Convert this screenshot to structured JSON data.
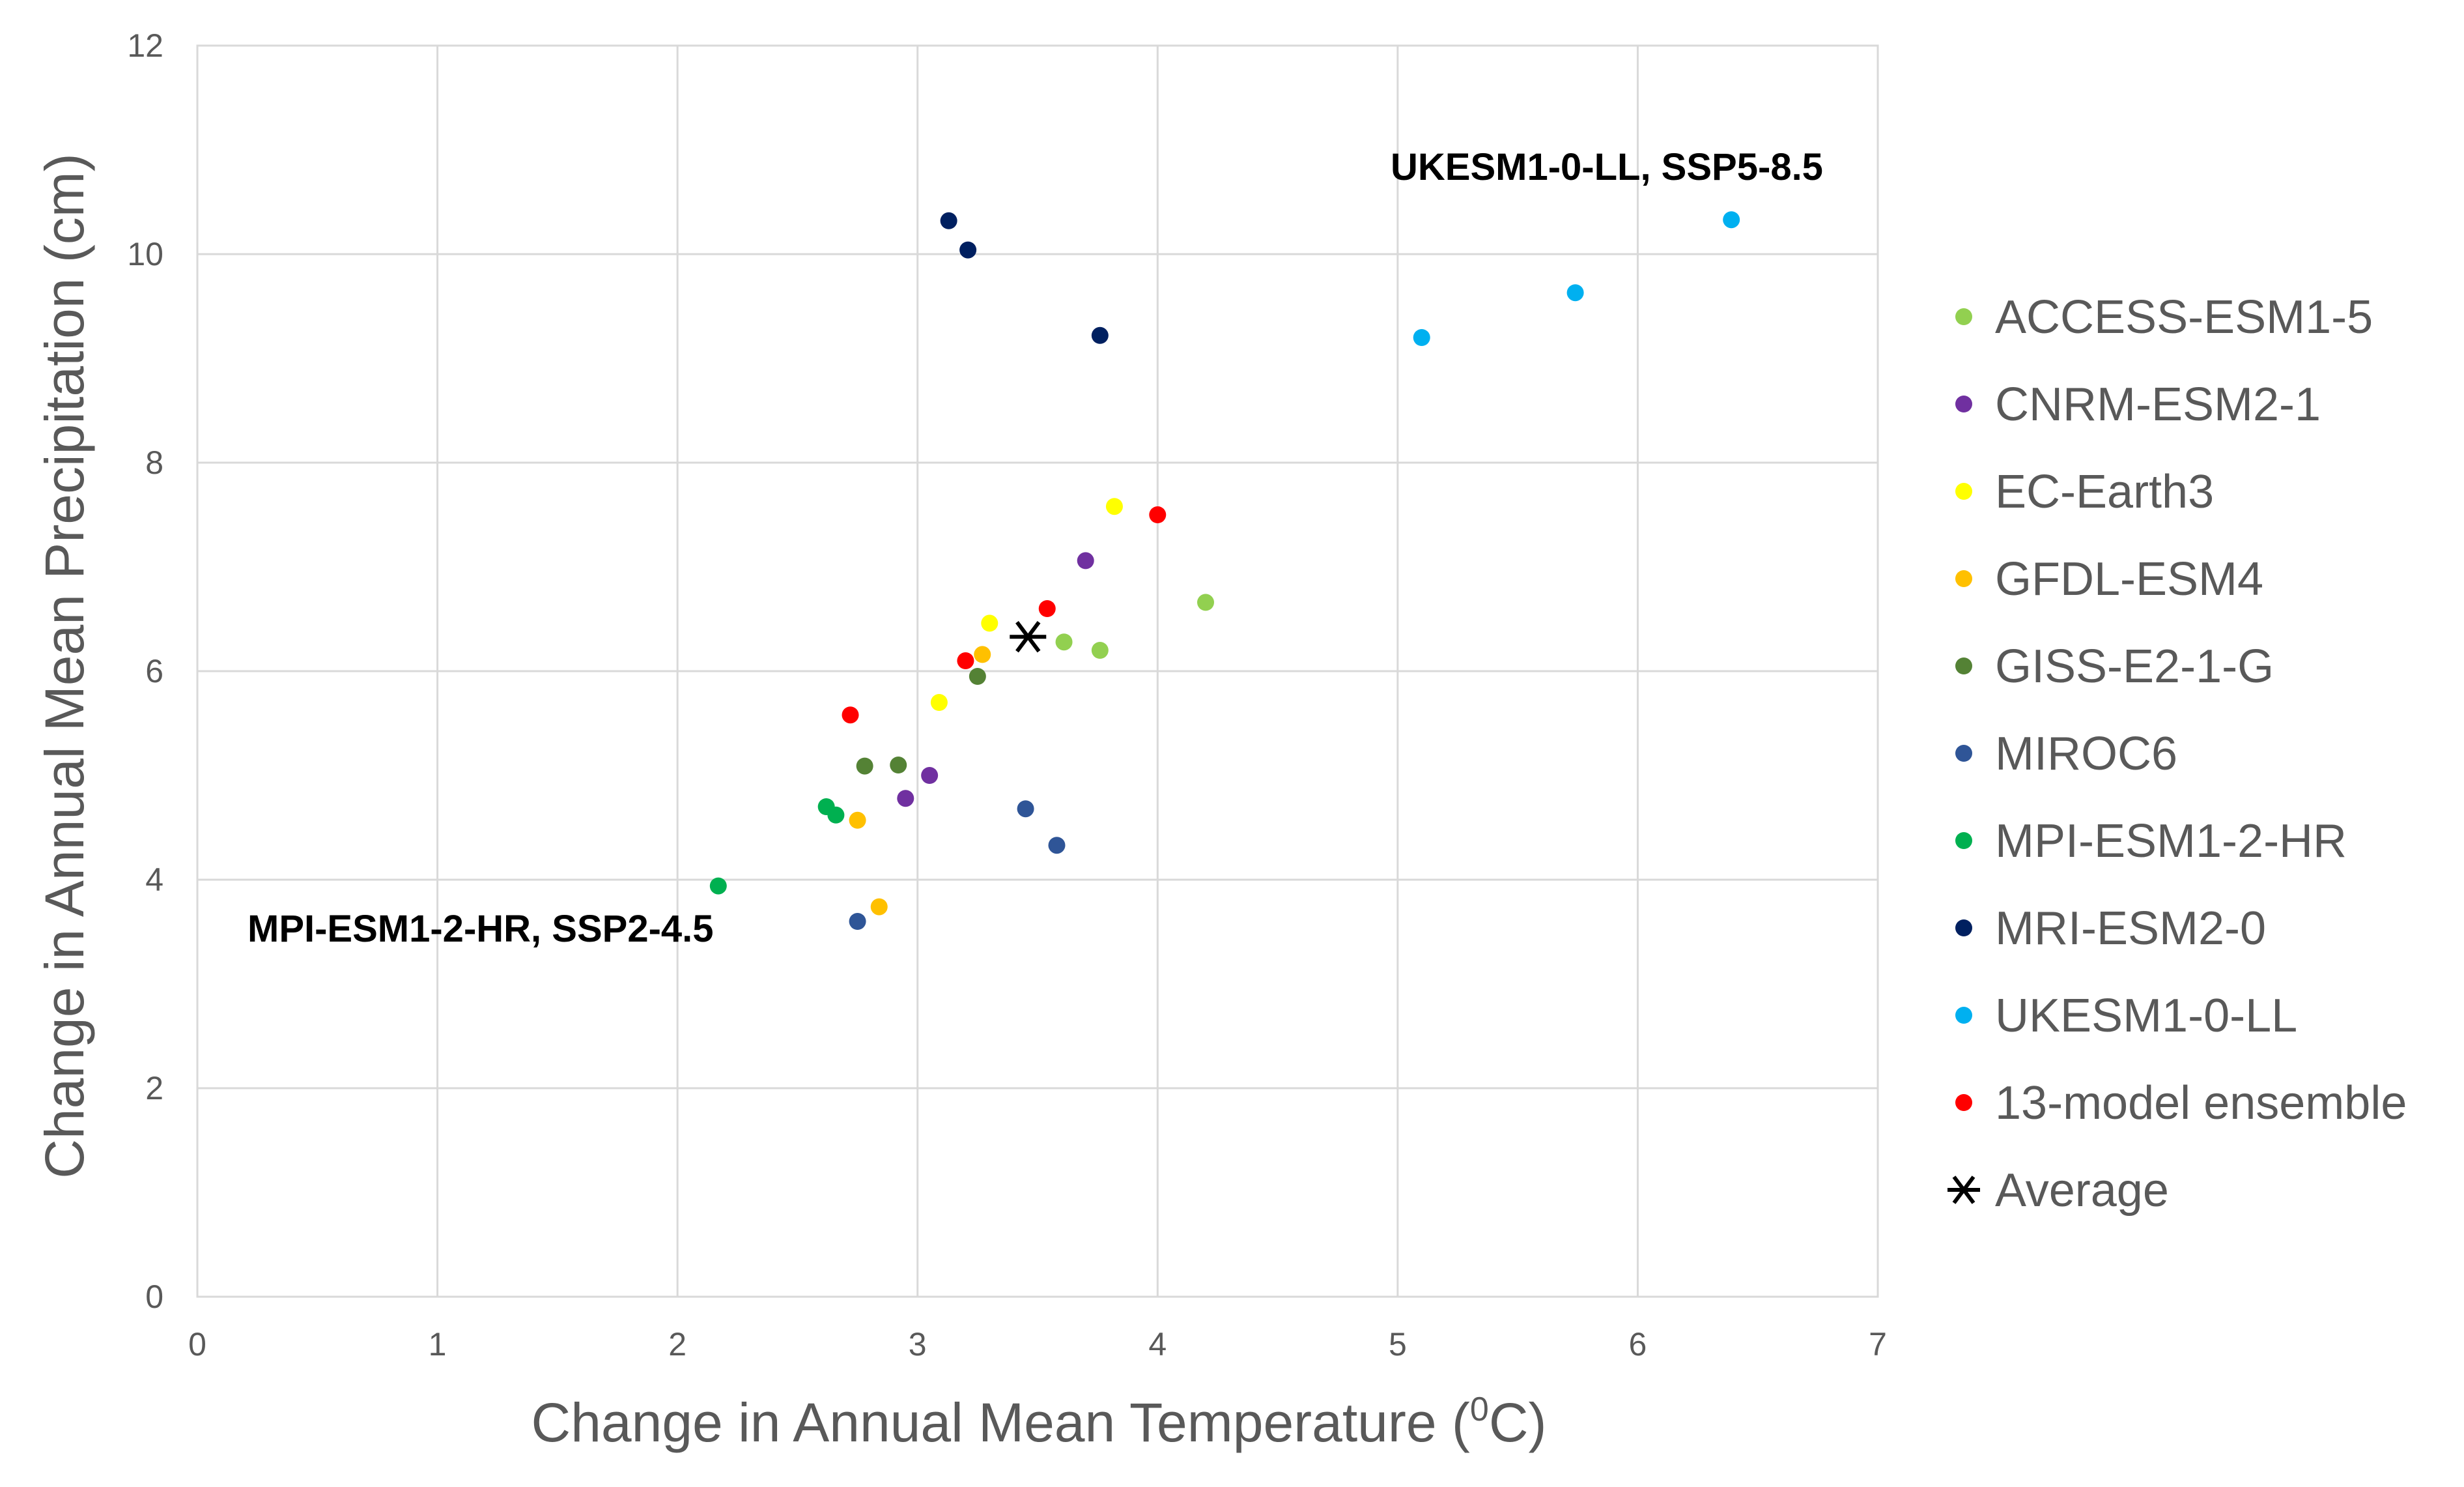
{
  "chart_data": {
    "type": "scatter",
    "title": "",
    "xlabel": "Change in Annual Mean Temperature (°C)",
    "xlabel_main": "Change in Annual Mean Temperature (",
    "xlabel_sup": "0",
    "xlabel_unit": "C)",
    "ylabel": "Change in Annual Mean Precipitation (cm)",
    "xlim": [
      0,
      7
    ],
    "ylim": [
      0,
      12
    ],
    "xticks": [
      "0",
      "1",
      "2",
      "3",
      "4",
      "5",
      "6",
      "7"
    ],
    "yticks": [
      "0",
      "2",
      "4",
      "6",
      "8",
      "10",
      "12"
    ],
    "grid": true,
    "legend_position": "right",
    "series": [
      {
        "name": "ACCESS-ESM1-5",
        "color": "#92D050",
        "points": [
          [
            3.61,
            6.28
          ],
          [
            3.76,
            6.2
          ],
          [
            4.2,
            6.66
          ]
        ]
      },
      {
        "name": "CNRM-ESM2-1",
        "color": "#7030A0",
        "points": [
          [
            2.95,
            4.78
          ],
          [
            3.05,
            5.0
          ],
          [
            3.7,
            7.06
          ]
        ]
      },
      {
        "name": "EC-Earth3",
        "color": "#FFFF00",
        "points": [
          [
            3.09,
            5.7
          ],
          [
            3.3,
            6.46
          ],
          [
            3.82,
            7.58
          ]
        ]
      },
      {
        "name": "GFDL-ESM4",
        "color": "#FFC000",
        "points": [
          [
            2.75,
            4.57
          ],
          [
            2.84,
            3.74
          ],
          [
            3.27,
            6.16
          ]
        ]
      },
      {
        "name": "GISS-E2-1-G",
        "color": "#548235",
        "points": [
          [
            2.78,
            5.09
          ],
          [
            2.92,
            5.1
          ],
          [
            3.25,
            5.95
          ]
        ]
      },
      {
        "name": "MIROC6",
        "color": "#2F5597",
        "points": [
          [
            2.75,
            3.6
          ],
          [
            3.45,
            4.68
          ],
          [
            3.58,
            4.33
          ]
        ]
      },
      {
        "name": "MPI-ESM1-2-HR",
        "color": "#00B050",
        "points": [
          [
            2.17,
            3.94
          ],
          [
            2.62,
            4.7
          ],
          [
            2.66,
            4.62
          ]
        ]
      },
      {
        "name": "MRI-ESM2-0",
        "color": "#002060",
        "points": [
          [
            3.13,
            10.32
          ],
          [
            3.21,
            10.04
          ],
          [
            3.76,
            9.22
          ]
        ]
      },
      {
        "name": "UKESM1-0-LL",
        "color": "#00B0F0",
        "points": [
          [
            5.1,
            9.2
          ],
          [
            5.74,
            9.63
          ],
          [
            6.39,
            10.33
          ]
        ]
      },
      {
        "name": "13-model ensemble",
        "color": "#FF0000",
        "points": [
          [
            2.72,
            5.58
          ],
          [
            3.2,
            6.1
          ],
          [
            3.54,
            6.6
          ],
          [
            4.0,
            7.5
          ]
        ]
      }
    ],
    "average": {
      "name": "Average",
      "color": "#000000",
      "point": [
        3.46,
        6.33
      ]
    },
    "annotations": [
      {
        "text": "UKESM1-0-LL, SSP5-8.5"
      },
      {
        "text": "MPI-ESM1-2-HR, SSP2-4.5"
      }
    ]
  }
}
